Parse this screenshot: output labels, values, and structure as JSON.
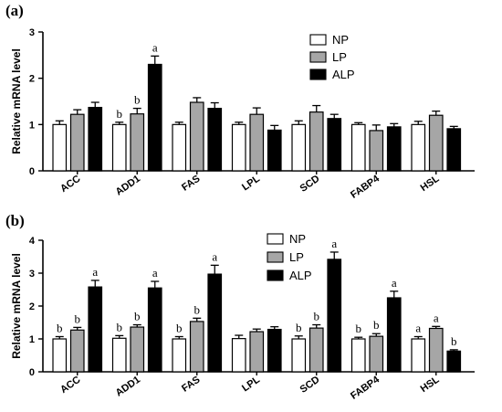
{
  "chart_data": [
    {
      "type": "bar",
      "panel_label": "(a)",
      "ylabel": "Relative mRNA level",
      "ylim": [
        0,
        3
      ],
      "yticks": [
        "0",
        "1",
        "2",
        "3"
      ],
      "categories": [
        "ACC",
        "ADD1",
        "FAS",
        "LPL",
        "SCD",
        "FABP4",
        "HSL"
      ],
      "legend_placement": "top-right",
      "series": [
        {
          "name": "NP",
          "color": "#ffffff",
          "values": [
            1.0,
            1.0,
            1.0,
            1.0,
            1.0,
            1.0,
            1.0
          ],
          "errors": [
            0.08,
            0.05,
            0.05,
            0.05,
            0.08,
            0.04,
            0.07
          ],
          "letters": [
            "",
            "b",
            "",
            "",
            "",
            "",
            ""
          ]
        },
        {
          "name": "LP",
          "color": "#a6a6a6",
          "values": [
            1.22,
            1.23,
            1.48,
            1.22,
            1.27,
            0.87,
            1.2
          ],
          "errors": [
            0.1,
            0.12,
            0.1,
            0.14,
            0.14,
            0.12,
            0.09
          ],
          "letters": [
            "",
            "b",
            "",
            "",
            "",
            "",
            ""
          ]
        },
        {
          "name": "ALP",
          "color": "#000000",
          "values": [
            1.37,
            2.3,
            1.35,
            0.88,
            1.13,
            0.95,
            0.91
          ],
          "errors": [
            0.11,
            0.18,
            0.12,
            0.1,
            0.09,
            0.07,
            0.05
          ],
          "letters": [
            "",
            "a",
            "",
            "",
            "",
            "",
            ""
          ]
        }
      ]
    },
    {
      "type": "bar",
      "panel_label": "(b)",
      "ylabel": "Relative mRNA level",
      "ylim": [
        0,
        4
      ],
      "yticks": [
        "0",
        "1",
        "2",
        "3",
        "4"
      ],
      "categories": [
        "ACC",
        "ADD1",
        "FAS",
        "LPL",
        "SCD",
        "FABP4",
        "HSL"
      ],
      "legend_placement": "top-right",
      "series": [
        {
          "name": "NP",
          "color": "#ffffff",
          "values": [
            1.0,
            1.02,
            1.0,
            1.01,
            1.0,
            1.0,
            1.0
          ],
          "errors": [
            0.07,
            0.08,
            0.07,
            0.1,
            0.09,
            0.05,
            0.07
          ],
          "letters": [
            "b",
            "b",
            "b",
            "",
            "b",
            "b",
            "a"
          ]
        },
        {
          "name": "LP",
          "color": "#a6a6a6",
          "values": [
            1.27,
            1.36,
            1.53,
            1.22,
            1.33,
            1.08,
            1.32
          ],
          "errors": [
            0.08,
            0.07,
            0.1,
            0.08,
            0.1,
            0.08,
            0.06
          ],
          "letters": [
            "b",
            "b",
            "b",
            "",
            "b",
            "b",
            "a"
          ]
        },
        {
          "name": "ALP",
          "color": "#000000",
          "values": [
            2.58,
            2.55,
            2.97,
            1.29,
            3.42,
            2.25,
            0.63
          ],
          "errors": [
            0.2,
            0.2,
            0.27,
            0.08,
            0.22,
            0.2,
            0.04
          ],
          "letters": [
            "a",
            "a",
            "a",
            "",
            "a",
            "a",
            "b"
          ]
        }
      ]
    }
  ]
}
